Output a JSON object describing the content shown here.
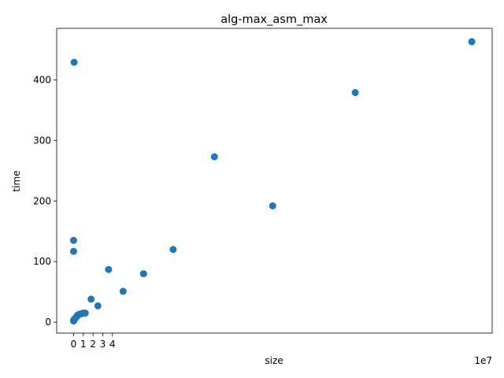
{
  "chart_data": {
    "type": "scatter",
    "title": "alg-max_asm_max",
    "xlabel": "size",
    "ylabel": "time",
    "x_offset_label": "1e7",
    "xlim": [
      -1.74,
      43.1
    ],
    "ylim": [
      -18.0,
      485.0
    ],
    "xticks": [
      0,
      1,
      2,
      3,
      4
    ],
    "xtick_labels": [
      "0",
      "1",
      "2",
      "3",
      "4"
    ],
    "yticks": [
      0,
      100,
      200,
      300,
      400
    ],
    "ytick_labels": [
      "0",
      "100",
      "200",
      "300",
      "400"
    ],
    "grid": false,
    "legend": "none",
    "marker_color": "#1f77b4",
    "points": [
      {
        "x": 0.001,
        "y": 2
      },
      {
        "x": 0.005,
        "y": 2.5
      },
      {
        "x": 0.01,
        "y": 3
      },
      {
        "x": 0.02,
        "y": 3
      },
      {
        "x": 0.04,
        "y": 4
      },
      {
        "x": 0.08,
        "y": 5
      },
      {
        "x": 0.15,
        "y": 6
      },
      {
        "x": 0.25,
        "y": 8
      },
      {
        "x": 0.35,
        "y": 10
      },
      {
        "x": 0.45,
        "y": 12
      },
      {
        "x": 0.6,
        "y": 13
      },
      {
        "x": 0.8,
        "y": 14
      },
      {
        "x": 1.0,
        "y": 15
      },
      {
        "x": 1.2,
        "y": 15
      },
      {
        "x": 1.8,
        "y": 38
      },
      {
        "x": 2.5,
        "y": 27
      },
      {
        "x": 3.6,
        "y": 87
      },
      {
        "x": 5.1,
        "y": 51
      },
      {
        "x": 7.2,
        "y": 80
      },
      {
        "x": 10.25,
        "y": 120
      },
      {
        "x": 14.5,
        "y": 273
      },
      {
        "x": 20.5,
        "y": 192
      },
      {
        "x": 29.0,
        "y": 379
      },
      {
        "x": 41.0,
        "y": 463
      },
      {
        "x": 0.05,
        "y": 429
      },
      {
        "x": 0.0,
        "y": 135
      },
      {
        "x": 0.0,
        "y": 117
      }
    ]
  }
}
